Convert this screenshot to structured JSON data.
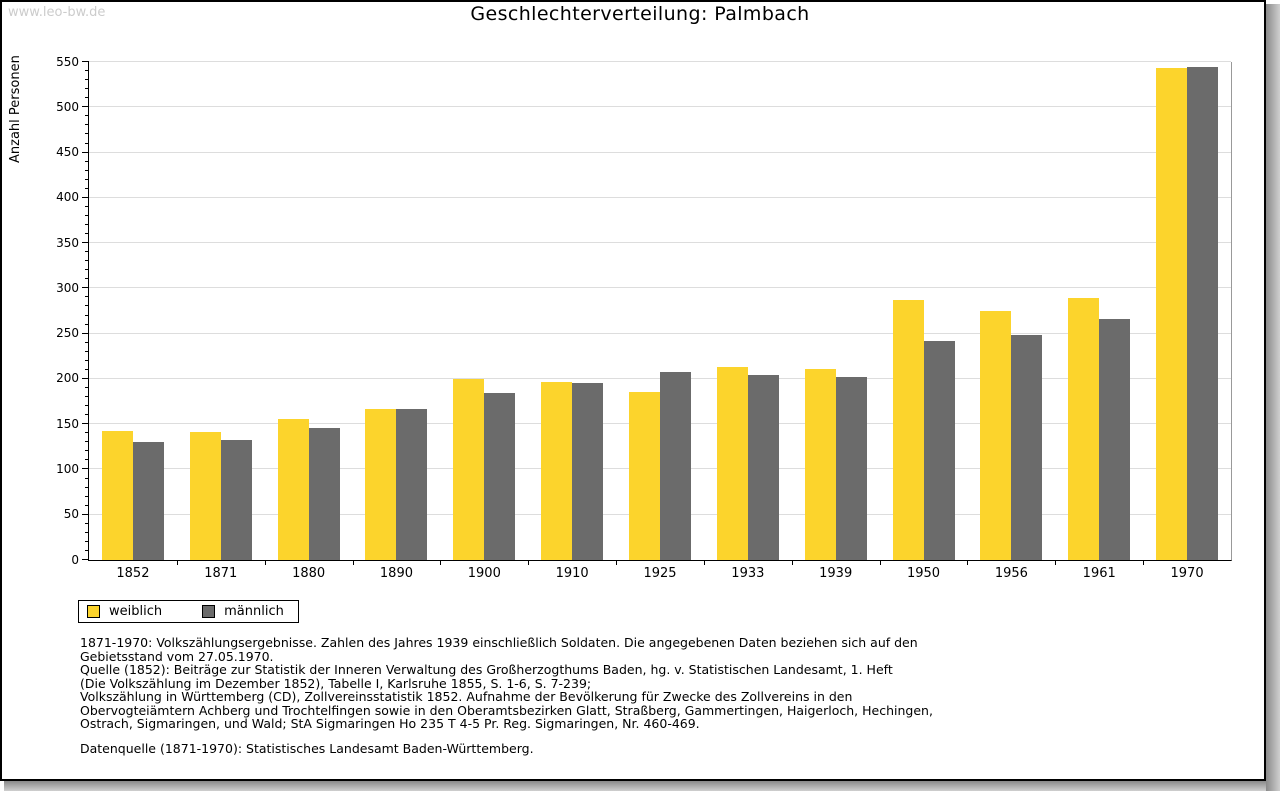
{
  "watermark": "www.leo-bw.de",
  "title": "Geschlechterverteilung: Palmbach",
  "chart_data": {
    "type": "bar",
    "title": "Geschlechterverteilung: Palmbach",
    "xlabel": "",
    "ylabel": "Anzahl Personen",
    "ylim": [
      0,
      550
    ],
    "ytick_step": 50,
    "minor_tick_step": 10,
    "grid": true,
    "legend_position": "bottom-left",
    "categories": [
      "1852",
      "1871",
      "1880",
      "1890",
      "1900",
      "1910",
      "1925",
      "1933",
      "1939",
      "1950",
      "1956",
      "1961",
      "1970"
    ],
    "series": [
      {
        "name": "weiblich",
        "color": "#fcd42c",
        "values": [
          143,
          141,
          156,
          167,
          200,
          197,
          186,
          213,
          211,
          287,
          275,
          289,
          543
        ]
      },
      {
        "name": "männlich",
        "color": "#6b6b6b",
        "values": [
          130,
          133,
          146,
          167,
          184,
          196,
          208,
          204,
          202,
          242,
          248,
          266,
          545
        ]
      }
    ]
  },
  "legend": {
    "items": [
      {
        "label": "weiblich",
        "color": "#fcd42c"
      },
      {
        "label": "männlich",
        "color": "#6b6b6b"
      }
    ]
  },
  "footnotes": {
    "lines": [
      "1871-1970: Volkszählungsergebnisse. Zahlen des Jahres 1939 einschließlich Soldaten. Die angegebenen Daten beziehen sich auf den",
      "Gebietsstand vom 27.05.1970.",
      "Quelle (1852): Beiträge zur Statistik der Inneren Verwaltung des Großherzogthums Baden, hg. v. Statistischen Landesamt, 1. Heft",
      "(Die Volkszählung im Dezember 1852), Tabelle I, Karlsruhe 1855, S. 1-6, S. 7-239;",
      "Volkszählung in Württemberg (CD), Zollvereinsstatistik 1852. Aufnahme der Bevölkerung für Zwecke des Zollvereins in den",
      "Obervogteiämtern Achberg und Trochtelfingen sowie in den Oberamtsbezirken Glatt, Straßberg, Gammertingen, Haigerloch, Hechingen,",
      "Ostrach, Sigmaringen, und Wald; StA Sigmaringen Ho 235 T 4-5 Pr. Reg. Sigmaringen, Nr. 460-469."
    ],
    "datasource": "Datenquelle (1871-1970): Statistisches Landesamt Baden-Württemberg."
  }
}
